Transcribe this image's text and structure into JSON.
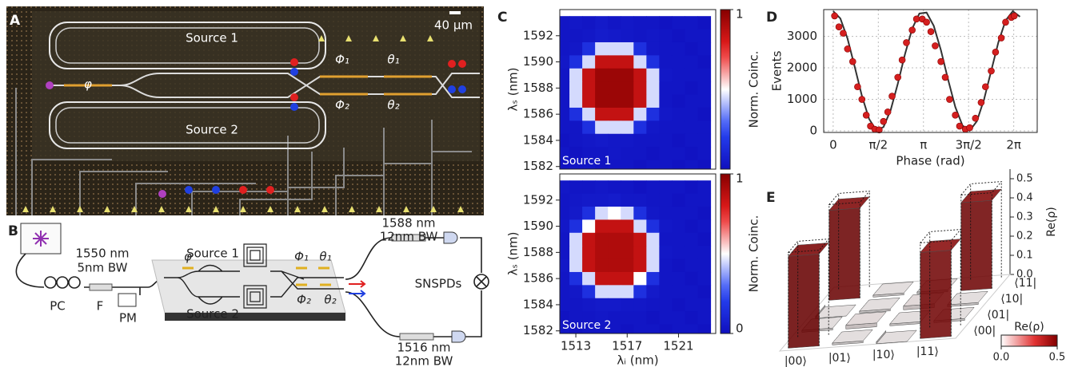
{
  "panel_labels": [
    "A",
    "B",
    "C",
    "D",
    "E"
  ],
  "panel_a": {
    "source_1": "Source 1",
    "source_2": "Source 2",
    "scale_bar": "40 µm",
    "phi": "φ",
    "phi_1": "Φ₁",
    "theta_1": "θ₁",
    "phi_2": "Φ₂",
    "theta_2": "θ₂"
  },
  "panel_b": {
    "filter_in": [
      "1550 nm",
      "5nm BW"
    ],
    "pc": "PC",
    "f": "F",
    "pm": "PM",
    "source_1": "Source 1",
    "source_2": "Source 2",
    "phi": "φ",
    "phi_1": "Φ₁",
    "theta_1": "θ₁",
    "phi_2": "Φ₂",
    "theta_2": "θ₂",
    "filter_top": [
      "1588 nm",
      "12nm BW"
    ],
    "filter_bottom": [
      "1516 nm",
      "12nm BW"
    ],
    "detectors": "SNSPDs"
  },
  "chart_data": [
    {
      "type": "heatmap",
      "annotation": "Source 1",
      "y_label": "λₛ (nm)",
      "x": [
        1512,
        1513,
        1514,
        1515,
        1516,
        1517,
        1518,
        1519,
        1520,
        1521,
        1522,
        1523
      ],
      "y": [
        1593,
        1592,
        1591,
        1590,
        1589,
        1588,
        1587,
        1586,
        1585,
        1584,
        1583,
        1582
      ],
      "values": [
        [
          0.03,
          0.04,
          0.03,
          0.05,
          0.03,
          0.04,
          0.03,
          0.03,
          0.02,
          0.03,
          0.03,
          0.02
        ],
        [
          0.03,
          0.03,
          0.04,
          0.06,
          0.05,
          0.04,
          0.03,
          0.04,
          0.03,
          0.02,
          0.03,
          0.03
        ],
        [
          0.03,
          0.04,
          0.15,
          0.45,
          0.45,
          0.45,
          0.15,
          0.04,
          0.03,
          0.03,
          0.02,
          0.03
        ],
        [
          0.04,
          0.15,
          0.45,
          0.85,
          0.85,
          0.85,
          0.45,
          0.15,
          0.03,
          0.03,
          0.03,
          0.02
        ],
        [
          0.03,
          0.45,
          0.85,
          0.95,
          0.95,
          0.95,
          0.85,
          0.45,
          0.04,
          0.03,
          0.03,
          0.03
        ],
        [
          0.03,
          0.45,
          0.85,
          0.95,
          0.95,
          0.95,
          0.85,
          0.45,
          0.03,
          0.03,
          0.02,
          0.03
        ],
        [
          0.03,
          0.45,
          0.85,
          0.95,
          0.95,
          0.95,
          0.85,
          0.45,
          0.03,
          0.02,
          0.03,
          0.03
        ],
        [
          0.03,
          0.15,
          0.45,
          0.85,
          0.85,
          0.85,
          0.45,
          0.15,
          0.04,
          0.03,
          0.03,
          0.02
        ],
        [
          0.03,
          0.03,
          0.15,
          0.45,
          0.45,
          0.45,
          0.15,
          0.04,
          0.03,
          0.03,
          0.03,
          0.03
        ],
        [
          0.02,
          0.03,
          0.04,
          0.05,
          0.04,
          0.04,
          0.03,
          0.03,
          0.03,
          0.02,
          0.03,
          0.03
        ],
        [
          0.03,
          0.02,
          0.03,
          0.03,
          0.04,
          0.03,
          0.03,
          0.02,
          0.03,
          0.03,
          0.02,
          0.03
        ],
        [
          0.02,
          0.03,
          0.03,
          0.02,
          0.03,
          0.03,
          0.02,
          0.03,
          0.03,
          0.02,
          0.03,
          0.02
        ]
      ],
      "xlim": [
        1511.75,
        1523.9
      ],
      "ylim": [
        1581.8,
        1594
      ],
      "yticks": [
        1582,
        1584,
        1586,
        1588,
        1590,
        1592
      ],
      "colorbar": {
        "label": "Norm. Coinc.",
        "lim": [
          0,
          1
        ],
        "ticks": [
          1
        ]
      }
    },
    {
      "type": "heatmap",
      "annotation": "Source 2",
      "y_label": "λₛ (nm)",
      "x_label": "λᵢ (nm)",
      "x": [
        1512,
        1513,
        1514,
        1515,
        1516,
        1517,
        1518,
        1519,
        1520,
        1521,
        1522,
        1523
      ],
      "y": [
        1593,
        1592,
        1591,
        1590,
        1589,
        1588,
        1587,
        1586,
        1585,
        1584,
        1583,
        1582
      ],
      "values": [
        [
          0.04,
          0.03,
          0.03,
          0.04,
          0.03,
          0.03,
          0.02,
          0.03,
          0.03,
          0.03,
          0.02,
          0.03
        ],
        [
          0.03,
          0.04,
          0.05,
          0.05,
          0.06,
          0.04,
          0.04,
          0.03,
          0.03,
          0.02,
          0.03,
          0.03
        ],
        [
          0.03,
          0.05,
          0.15,
          0.45,
          0.5,
          0.45,
          0.15,
          0.04,
          0.03,
          0.03,
          0.03,
          0.02
        ],
        [
          0.04,
          0.15,
          0.5,
          0.85,
          0.85,
          0.85,
          0.45,
          0.15,
          0.04,
          0.03,
          0.02,
          0.03
        ],
        [
          0.03,
          0.45,
          0.85,
          0.9,
          0.9,
          0.9,
          0.85,
          0.45,
          0.03,
          0.03,
          0.03,
          0.02
        ],
        [
          0.03,
          0.45,
          0.85,
          0.9,
          0.9,
          0.9,
          0.85,
          0.45,
          0.04,
          0.03,
          0.03,
          0.03
        ],
        [
          0.04,
          0.45,
          0.85,
          0.9,
          0.9,
          0.9,
          0.85,
          0.45,
          0.03,
          0.02,
          0.03,
          0.03
        ],
        [
          0.03,
          0.15,
          0.45,
          0.85,
          0.85,
          0.85,
          0.5,
          0.15,
          0.03,
          0.03,
          0.02,
          0.03
        ],
        [
          0.03,
          0.04,
          0.15,
          0.45,
          0.45,
          0.45,
          0.15,
          0.05,
          0.03,
          0.03,
          0.03,
          0.02
        ],
        [
          0.03,
          0.03,
          0.04,
          0.05,
          0.05,
          0.04,
          0.04,
          0.03,
          0.03,
          0.02,
          0.03,
          0.03
        ],
        [
          0.02,
          0.03,
          0.03,
          0.04,
          0.03,
          0.03,
          0.03,
          0.02,
          0.03,
          0.03,
          0.02,
          0.03
        ],
        [
          0.03,
          0.02,
          0.03,
          0.03,
          0.03,
          0.02,
          0.03,
          0.03,
          0.02,
          0.03,
          0.03,
          0.02
        ]
      ],
      "xlim": [
        1511.75,
        1523.9
      ],
      "ylim": [
        1581.8,
        1594
      ],
      "xticks": [
        1513,
        1517,
        1521
      ],
      "yticks": [
        1582,
        1584,
        1586,
        1588,
        1590,
        1592
      ],
      "colorbar": {
        "label": "Norm. Coinc.",
        "lim": [
          0,
          1
        ],
        "ticks": [
          0,
          1
        ]
      }
    },
    {
      "type": "scatter",
      "x_label": "Phase (rad)",
      "y_label": "Events",
      "grid": true,
      "xlim": [
        -0.33,
        7.1
      ],
      "ylim": [
        -50,
        3850
      ],
      "xticks": [
        0,
        {
          "value": 1.5708,
          "label": "π/2"
        },
        {
          "value": 3.1416,
          "label": "π"
        },
        {
          "value": 4.7124,
          "label": "3π/2"
        },
        {
          "value": 6.2832,
          "label": "2π"
        }
      ],
      "yticks": [
        0,
        1000,
        2000,
        3000
      ],
      "points": {
        "color": "#d41f1f",
        "x": [
          0.05,
          0.2,
          0.35,
          0.5,
          0.68,
          0.85,
          1.0,
          1.15,
          1.3,
          1.45,
          1.6,
          1.75,
          1.9,
          2.05,
          2.25,
          2.4,
          2.55,
          2.75,
          2.9,
          3.1,
          3.25,
          3.4,
          3.55,
          3.75,
          3.9,
          4.05,
          4.25,
          4.4,
          4.6,
          4.75,
          4.95,
          5.15,
          5.3,
          5.5,
          5.65,
          5.85,
          6.0,
          6.2,
          6.3
        ],
        "values": [
          3650,
          3300,
          3100,
          2600,
          2200,
          1400,
          1000,
          500,
          150,
          50,
          30,
          300,
          600,
          1100,
          1700,
          2250,
          2800,
          3200,
          3550,
          3550,
          3450,
          3150,
          2700,
          2200,
          1700,
          1000,
          500,
          150,
          50,
          100,
          400,
          900,
          1400,
          1900,
          2500,
          2950,
          3450,
          3600,
          3650
        ]
      },
      "fit": {
        "color": "#333333",
        "x": [
          0,
          0.25,
          0.5,
          0.75,
          1.0,
          1.25,
          1.5,
          1.75,
          2.0,
          2.25,
          2.5,
          2.75,
          3.0,
          3.25,
          3.5,
          3.75,
          4.0,
          4.25,
          4.5,
          4.75,
          5.0,
          5.25,
          5.5,
          5.75,
          6.0,
          6.25,
          6.5
        ],
        "values": [
          3800,
          3567,
          2927,
          2034,
          1109,
          378,
          19,
          121,
          658,
          1500,
          2439,
          3246,
          3724,
          3755,
          3333,
          2559,
          1623,
          756,
          169,
          5,
          306,
          997,
          1909,
          2818,
          3503,
          3798,
          3624
        ]
      }
    },
    {
      "type": "bar3d",
      "z_label": "Re(ρ)",
      "row_labels": [
        "|00⟩",
        "|01⟩",
        "|10⟩",
        "|11⟩"
      ],
      "col_labels": [
        "⟨00|",
        "⟨01|",
        "⟨10|",
        "⟨11|"
      ],
      "values": [
        [
          0.48,
          0.01,
          -0.01,
          0.47
        ],
        [
          0.01,
          0.02,
          0.01,
          0.01
        ],
        [
          -0.01,
          0.01,
          0.02,
          0.01
        ],
        [
          0.45,
          0.01,
          0.01,
          0.46
        ]
      ],
      "ideal": [
        [
          0.5,
          0,
          0,
          0.5
        ],
        [
          0,
          0,
          0,
          0
        ],
        [
          0,
          0,
          0,
          0
        ],
        [
          0.5,
          0,
          0,
          0.5
        ]
      ],
      "zlim": [
        0,
        0.55
      ],
      "zticks": [
        {
          "value": 0,
          "label": "0.0"
        },
        {
          "value": 0.1,
          "label": "0.1"
        },
        {
          "value": 0.2,
          "label": "0.2"
        },
        {
          "value": 0.3,
          "label": "0.3"
        },
        {
          "value": 0.4,
          "label": "0.4"
        },
        {
          "value": 0.5,
          "label": "0.5"
        }
      ],
      "colorbar": {
        "label": "Re(ρ)",
        "lim": [
          0,
          0.5
        ],
        "ticks": [
          {
            "value": 0,
            "label": "0.0"
          },
          {
            "value": 0.5,
            "label": "0.5"
          }
        ]
      }
    }
  ]
}
